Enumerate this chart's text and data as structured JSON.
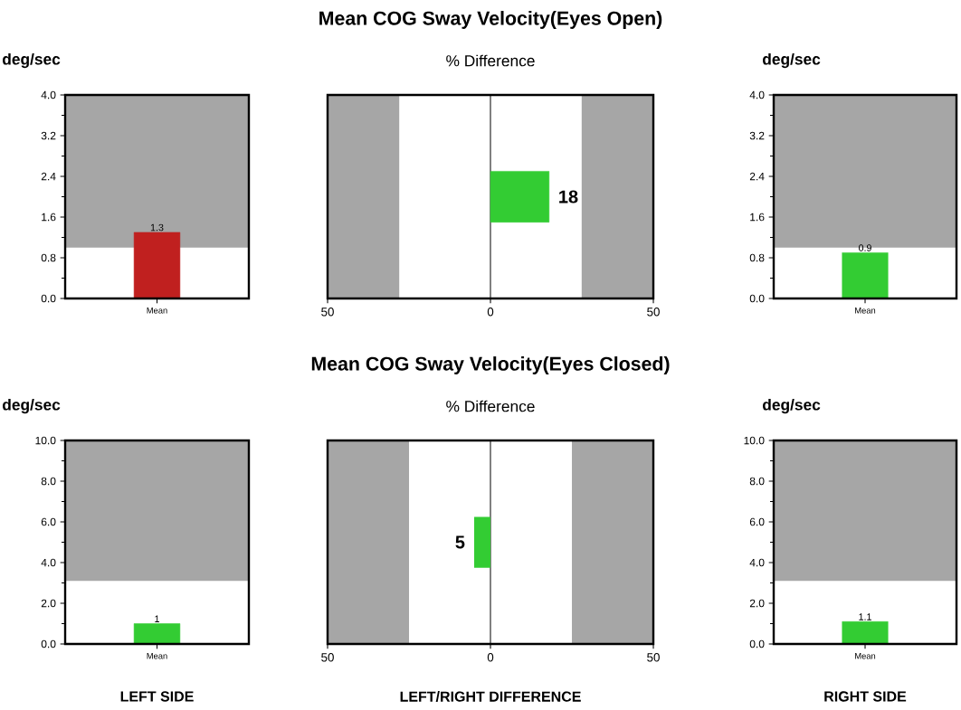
{
  "chart_data": [
    {
      "type": "bar",
      "ylabel": "deg/sec",
      "categories": [
        "Mean"
      ],
      "values": [
        1.3
      ],
      "color": "#c0201f",
      "ylim": [
        0,
        4
      ],
      "yticks": [
        {
          "value": 0,
          "label": "0.0"
        },
        {
          "value": 0.8,
          "label": "0.8"
        },
        {
          "value": 1.6,
          "label": "1.6"
        },
        {
          "value": 2.4,
          "label": "2.4"
        },
        {
          "value": 3.2,
          "label": "3.2"
        },
        {
          "value": 4,
          "label": "4.0"
        }
      ],
      "bands": [
        {
          "axis": "y",
          "from": 1.0,
          "to": 4.0,
          "color": "#a6a6a6"
        }
      ],
      "data_labels": true
    },
    {
      "type": "bar",
      "orientation": "horizontal",
      "title": "Mean COG Sway Velocity(Eyes Open)",
      "subtitle": "% Difference",
      "categories": [
        null
      ],
      "values": [
        18
      ],
      "color": "#33cc33",
      "xlim": [
        -50,
        50
      ],
      "xticks": [
        {
          "value": -50,
          "label": "50"
        },
        0,
        50
      ],
      "bands": [
        {
          "axis": "x",
          "from": -50,
          "to": -28,
          "color": "#a6a6a6"
        },
        {
          "axis": "x",
          "from": 28,
          "to": 50,
          "color": "#a6a6a6"
        }
      ],
      "ref_lines": [
        {
          "axis": "x",
          "value": 0,
          "color": "#808080"
        }
      ],
      "data_labels": true
    },
    {
      "type": "bar",
      "ylabel": "deg/sec",
      "categories": [
        "Mean"
      ],
      "values": [
        0.9
      ],
      "color": "#33cc33",
      "ylim": [
        0,
        4
      ],
      "yticks": [
        {
          "value": 0,
          "label": "0.0"
        },
        {
          "value": 0.8,
          "label": "0.8"
        },
        {
          "value": 1.6,
          "label": "1.6"
        },
        {
          "value": 2.4,
          "label": "2.4"
        },
        {
          "value": 3.2,
          "label": "3.2"
        },
        {
          "value": 4,
          "label": "4.0"
        }
      ],
      "bands": [
        {
          "axis": "y",
          "from": 1.0,
          "to": 4.0,
          "color": "#a6a6a6"
        }
      ],
      "data_labels": true
    },
    {
      "type": "bar",
      "ylabel": "deg/sec",
      "xlabel": "LEFT SIDE",
      "categories": [
        "Mean"
      ],
      "values": [
        1
      ],
      "color": "#33cc33",
      "ylim": [
        0,
        10
      ],
      "yticks": [
        {
          "value": 0,
          "label": "0.0"
        },
        {
          "value": 2,
          "label": "2.0"
        },
        {
          "value": 4,
          "label": "4.0"
        },
        {
          "value": 6,
          "label": "6.0"
        },
        {
          "value": 8,
          "label": "8.0"
        },
        {
          "value": 10,
          "label": "10.0"
        }
      ],
      "bands": [
        {
          "axis": "y",
          "from": 3.1,
          "to": 10,
          "color": "#a6a6a6"
        }
      ],
      "data_labels": true
    },
    {
      "type": "bar",
      "orientation": "horizontal",
      "title": "Mean COG Sway Velocity(Eyes Closed)",
      "subtitle": "% Difference",
      "xlabel": "LEFT/RIGHT DIFFERENCE",
      "categories": [
        null
      ],
      "values": [
        5
      ],
      "base": [
        -5
      ],
      "data_labels": true,
      "color": "#33cc33",
      "xlim": [
        -50,
        50
      ],
      "xticks": [
        {
          "value": -50,
          "label": "50"
        },
        0,
        50
      ],
      "bands": [
        {
          "axis": "x",
          "from": -50,
          "to": -25,
          "color": "#a6a6a6"
        },
        {
          "axis": "x",
          "from": 25,
          "to": 50,
          "color": "#a6a6a6"
        }
      ],
      "ref_lines": [
        {
          "axis": "x",
          "value": 0,
          "color": "#808080"
        }
      ]
    },
    {
      "type": "bar",
      "ylabel": "deg/sec",
      "xlabel": "RIGHT SIDE",
      "categories": [
        "Mean"
      ],
      "values": [
        1.1
      ],
      "color": "#33cc33",
      "ylim": [
        0,
        10
      ],
      "yticks": [
        {
          "value": 0,
          "label": "0.0"
        },
        {
          "value": 2,
          "label": "2.0"
        },
        {
          "value": 4,
          "label": "4.0"
        },
        {
          "value": 6,
          "label": "6.0"
        },
        {
          "value": 8,
          "label": "8.0"
        },
        {
          "value": 10,
          "label": "10.0"
        }
      ],
      "bands": [
        {
          "axis": "y",
          "from": 3.1,
          "to": 10,
          "color": "#a6a6a6"
        }
      ],
      "data_labels": true
    }
  ]
}
